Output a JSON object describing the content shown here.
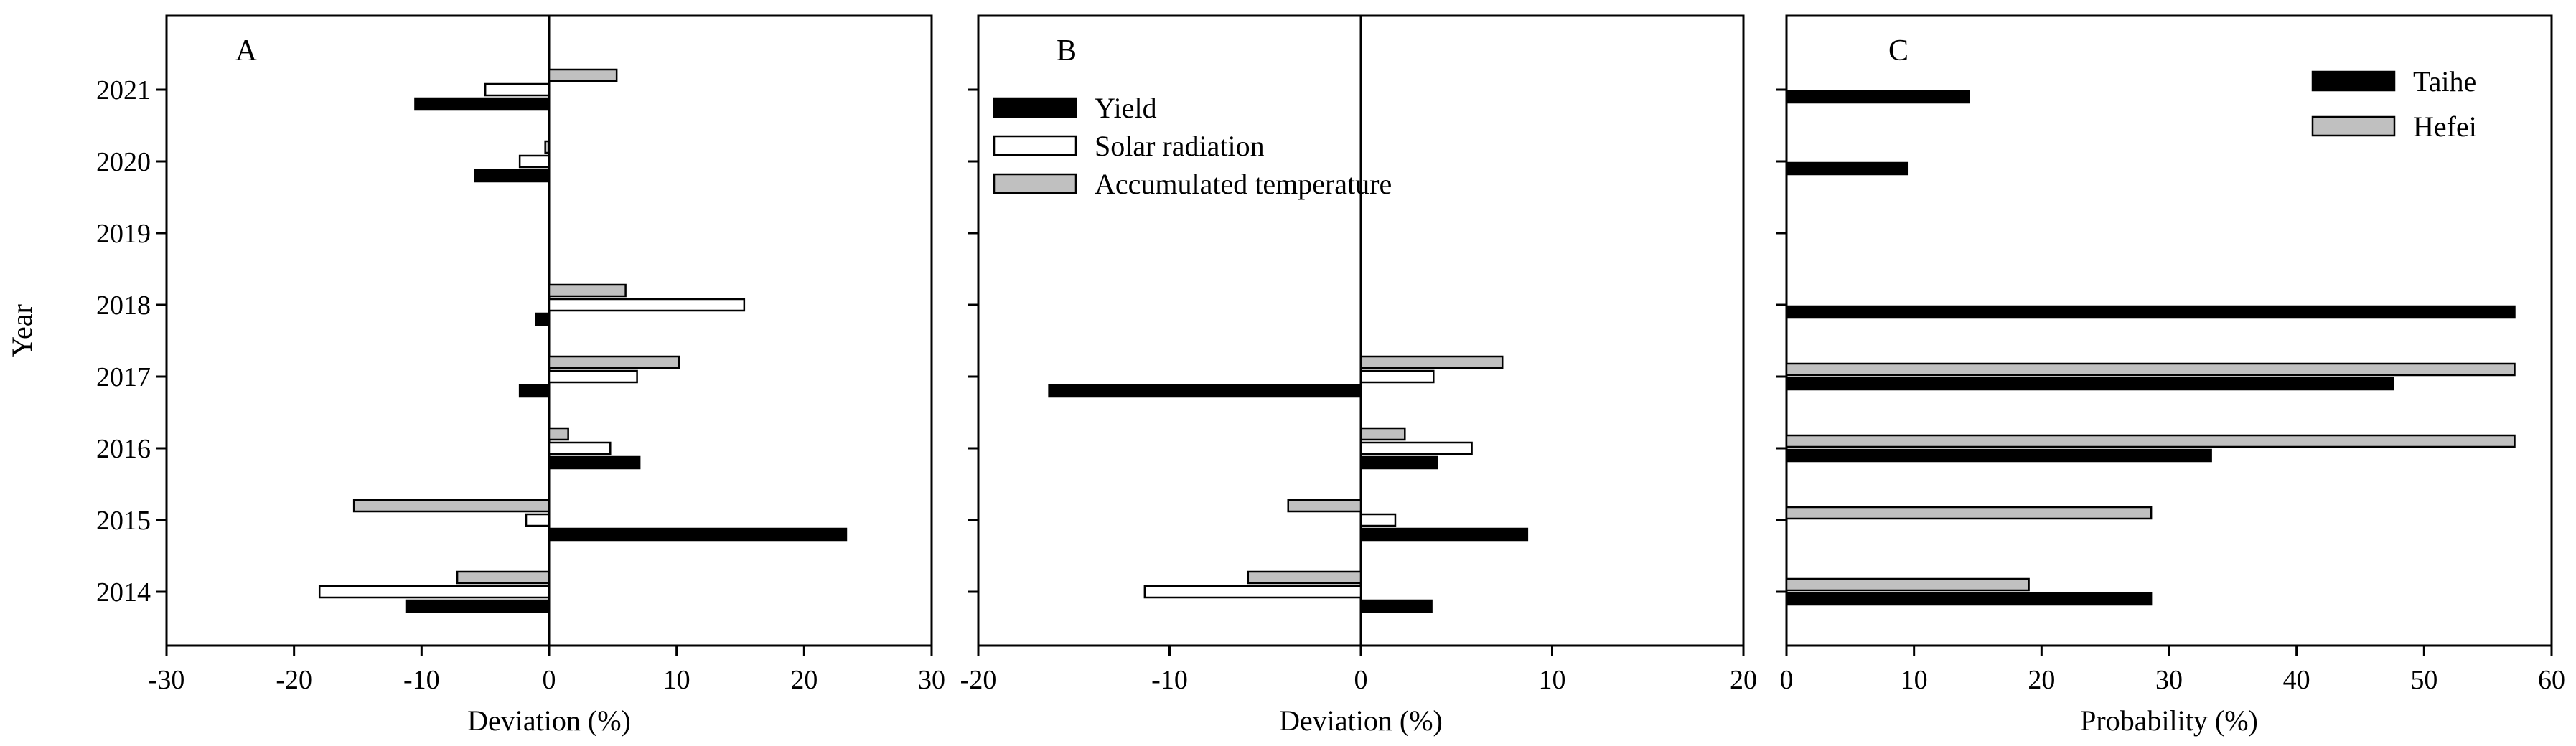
{
  "chart_data": [
    {
      "panel": "A",
      "type": "bar",
      "orientation": "horizontal",
      "ylabel": "Year",
      "xlabel": "Deviation (%)",
      "xlim": [
        -30,
        30
      ],
      "xticks": [
        -30,
        -20,
        -10,
        0,
        10,
        20,
        30
      ],
      "categories": [
        "2014",
        "2015",
        "2016",
        "2017",
        "2018",
        "2019",
        "2020",
        "2021"
      ],
      "series": [
        {
          "name": "Accumulated temperature",
          "color": "#c0c0c0",
          "values": [
            -7.2,
            -15.3,
            1.5,
            10.2,
            6.0,
            null,
            -0.3,
            5.3
          ]
        },
        {
          "name": "Solar radiation",
          "color": "#ffffff",
          "values": [
            -18.0,
            -1.8,
            4.8,
            6.9,
            15.3,
            null,
            -2.3,
            -5.0
          ]
        },
        {
          "name": "Yield",
          "color": "#000000",
          "values": [
            -11.2,
            23.3,
            7.1,
            -2.3,
            -1.0,
            null,
            -5.8,
            -10.5
          ]
        }
      ]
    },
    {
      "panel": "B",
      "type": "bar",
      "orientation": "horizontal",
      "xlabel": "Deviation (%)",
      "xlim": [
        -20,
        20
      ],
      "xticks": [
        -20,
        -10,
        0,
        10,
        20
      ],
      "categories": [
        "2014",
        "2015",
        "2016",
        "2017",
        "2018",
        "2019",
        "2020",
        "2021"
      ],
      "legend": [
        "Yield",
        "Solar radiation",
        "Accumulated temperature"
      ],
      "legend_position": "top-left",
      "series": [
        {
          "name": "Accumulated temperature",
          "color": "#c0c0c0",
          "values": [
            -5.9,
            -3.8,
            2.3,
            7.4,
            null,
            null,
            null,
            null
          ]
        },
        {
          "name": "Solar radiation",
          "color": "#ffffff",
          "values": [
            -11.3,
            1.8,
            5.8,
            3.8,
            null,
            null,
            null,
            null
          ]
        },
        {
          "name": "Yield",
          "color": "#000000",
          "values": [
            3.7,
            8.7,
            4.0,
            -16.3,
            null,
            null,
            null,
            null
          ]
        }
      ]
    },
    {
      "panel": "C",
      "type": "bar",
      "orientation": "horizontal",
      "xlabel": "Probability (%)",
      "xlim": [
        0,
        60
      ],
      "xticks": [
        0,
        10,
        20,
        30,
        40,
        50,
        60
      ],
      "categories": [
        "2014",
        "2015",
        "2016",
        "2017",
        "2018",
        "2019",
        "2020",
        "2021"
      ],
      "legend": [
        "Taihe",
        "Hefei"
      ],
      "legend_position": "top-right",
      "series": [
        {
          "name": "Hefei",
          "color": "#c0c0c0",
          "values": [
            19.0,
            28.6,
            57.1,
            57.1,
            null,
            null,
            null,
            null
          ]
        },
        {
          "name": "Taihe",
          "color": "#000000",
          "values": [
            28.6,
            null,
            33.3,
            47.6,
            57.1,
            null,
            9.5,
            14.3
          ]
        }
      ]
    }
  ]
}
